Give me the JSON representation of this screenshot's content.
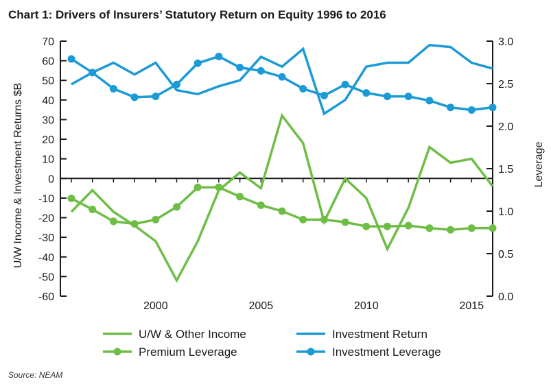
{
  "chart_data": {
    "type": "line",
    "title": "Chart 1: Drivers of Insurers’ Statutory Return on Equity 1996 to 2016",
    "ylabel_left": "U/W Income & Investment Returns $B",
    "ylabel_right": "Leverage",
    "x": [
      1996,
      1997,
      1998,
      1999,
      2000,
      2001,
      2002,
      2003,
      2004,
      2005,
      2006,
      2007,
      2008,
      2009,
      2010,
      2011,
      2012,
      2013,
      2014,
      2015,
      2016
    ],
    "xlim": [
      1996,
      2016
    ],
    "xticks": [
      2000,
      2005,
      2010,
      2015
    ],
    "xtick_labels": [
      "2000",
      "2005",
      "2010",
      "2015"
    ],
    "ylim_left": [
      -60,
      70
    ],
    "yticks_left": [
      -60,
      -50,
      -40,
      -30,
      -20,
      -10,
      0,
      10,
      20,
      30,
      40,
      50,
      60,
      70
    ],
    "ytick_labels_left": [
      "-60",
      "-50",
      "-40",
      "-30",
      "-20",
      "-10",
      "0",
      "10",
      "20",
      "30",
      "40",
      "50",
      "60",
      "70"
    ],
    "ylim_right": [
      0.0,
      3.0
    ],
    "yticks_right": [
      0.0,
      0.5,
      1.0,
      1.5,
      2.0,
      2.5,
      3.0
    ],
    "ytick_labels_right": [
      "0.0",
      "0.5",
      "1.0",
      "1.5",
      "2.0",
      "2.5",
      "3.0"
    ],
    "series": [
      {
        "name": "U/W & Other Income",
        "axis": "left",
        "marker": false,
        "color": "#6ebd45",
        "values": [
          -17,
          -6,
          -17,
          -24,
          -32,
          -52,
          -32,
          -6,
          3,
          -5,
          32,
          18,
          -22,
          0,
          -10,
          -36,
          -15,
          16,
          8,
          10,
          -4
        ]
      },
      {
        "name": "Investment Return",
        "axis": "left",
        "marker": false,
        "color": "#1b9ad6",
        "values": [
          48,
          54,
          59,
          53,
          59,
          45,
          43,
          47,
          50,
          62,
          57,
          66,
          33,
          40,
          57,
          59,
          59,
          68,
          67,
          59,
          56
        ]
      },
      {
        "name": "Premium Leverage",
        "axis": "right",
        "marker": true,
        "color": "#6ebd45",
        "values": [
          1.15,
          1.02,
          0.88,
          0.85,
          0.9,
          1.05,
          1.28,
          1.28,
          1.17,
          1.07,
          1.0,
          0.9,
          0.9,
          0.87,
          0.82,
          0.82,
          0.83,
          0.8,
          0.78,
          0.8,
          0.8
        ]
      },
      {
        "name": "Investment Leverage",
        "axis": "right",
        "marker": true,
        "color": "#1b9ad6",
        "values": [
          2.79,
          2.63,
          2.44,
          2.34,
          2.35,
          2.49,
          2.74,
          2.82,
          2.69,
          2.65,
          2.58,
          2.44,
          2.36,
          2.49,
          2.39,
          2.35,
          2.35,
          2.3,
          2.22,
          2.19,
          2.22
        ]
      }
    ],
    "legend_position": "bottom",
    "legend_order": [
      0,
      1,
      2,
      3
    ]
  },
  "source": "Source: NEAM"
}
